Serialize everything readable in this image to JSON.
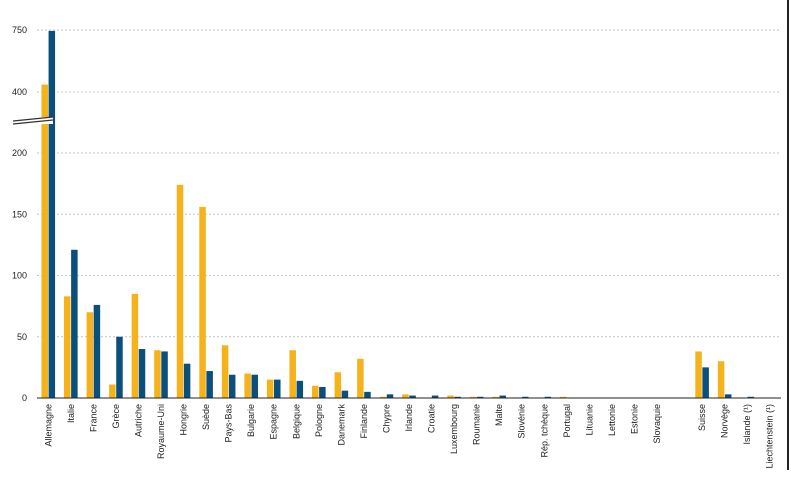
{
  "chart_data": {
    "type": "bar",
    "axis_break": {
      "below": 250,
      "above": 350
    },
    "y_ticks": [
      "0",
      "50",
      "100",
      "150",
      "200",
      "400",
      "750"
    ],
    "ylim": [
      0,
      750
    ],
    "grid": true,
    "colors": {
      "series1": "#F6B21B",
      "series2": "#0B4F7C"
    },
    "categories": [
      "Allemagne",
      "Italie",
      "France",
      "Grèce",
      "Autriche",
      "Royaume-Uni",
      "Hongrie",
      "Suède",
      "Pays-Bas",
      "Bulgarie",
      "Espagne",
      "Belgique",
      "Pologne",
      "Danemark",
      "Finlande",
      "Chypre",
      "Irlande",
      "Croatie",
      "Luxembourg",
      "Roumanie",
      "Malte",
      "Slovénie",
      "Rép. tchèque",
      "Portugal",
      "Lituanie",
      "Lettonie",
      "Estonie",
      "Slovaquie",
      "",
      "Suisse",
      "Norvège",
      "Islande (¹)",
      "Liechtenstein (¹)"
    ],
    "series": [
      {
        "values": [
          442,
          83,
          70,
          11,
          85,
          39,
          174,
          156,
          43,
          20,
          15,
          39,
          10,
          21,
          32,
          1,
          3,
          0,
          2,
          1,
          1,
          0,
          0,
          1,
          0,
          0,
          0,
          0,
          null,
          38,
          30,
          0,
          0
        ]
      },
      {
        "values": [
          745,
          121,
          76,
          50,
          40,
          38,
          28,
          22,
          19,
          19,
          15,
          14,
          9,
          6,
          5,
          3,
          2,
          2,
          1,
          1,
          2,
          1,
          1,
          0,
          0,
          0,
          0,
          0,
          null,
          25,
          3,
          1,
          0
        ]
      }
    ]
  }
}
